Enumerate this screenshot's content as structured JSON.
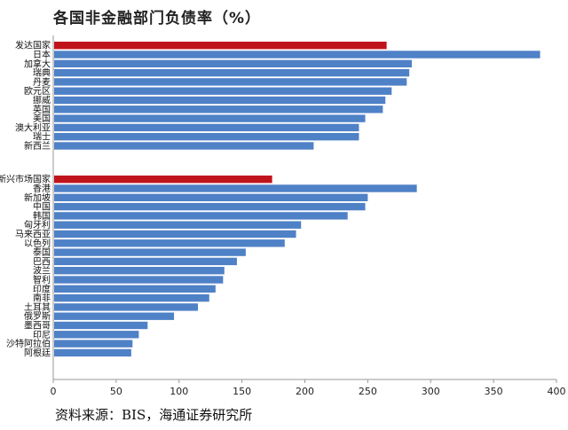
{
  "title": "各国非金融部门负债率（%）",
  "source": "资料来源：BIS，海通证券研究所",
  "colors": {
    "highlight": "#c0141c",
    "bar": "#4f81c7",
    "axis": "#999999"
  },
  "chart_data": {
    "type": "bar",
    "orientation": "horizontal",
    "title": "各国非金融部门负债率（%）",
    "xlim": [
      0,
      400
    ],
    "xticks": [
      0,
      50,
      100,
      150,
      200,
      250,
      300,
      350,
      400
    ],
    "groups": [
      {
        "categories": [
          "发达国家",
          "日本",
          "加拿大",
          "瑞典",
          "丹麦",
          "欧元区",
          "挪威",
          "英国",
          "美国",
          "澳大利亚",
          "瑞士",
          "新西兰"
        ],
        "values": [
          265,
          387,
          285,
          283,
          281,
          269,
          264,
          262,
          248,
          243,
          243,
          207
        ],
        "highlight": [
          true,
          false,
          false,
          false,
          false,
          false,
          false,
          false,
          false,
          false,
          false,
          false
        ]
      },
      {
        "categories": [
          "新兴市场国家",
          "香港",
          "新加坡",
          "中国",
          "韩国",
          "匈牙利",
          "马来西亚",
          "以色列",
          "泰国",
          "巴西",
          "波兰",
          "智利",
          "印度",
          "南非",
          "土耳其",
          "俄罗斯",
          "墨西哥",
          "印尼",
          "沙特阿拉伯",
          "阿根廷"
        ],
        "values": [
          174,
          289,
          250,
          248,
          234,
          197,
          193,
          184,
          153,
          146,
          136,
          135,
          129,
          124,
          115,
          96,
          75,
          68,
          63,
          62
        ],
        "highlight": [
          true,
          false,
          false,
          false,
          false,
          false,
          false,
          false,
          false,
          false,
          false,
          false,
          false,
          false,
          false,
          false,
          false,
          false,
          false,
          false
        ]
      }
    ]
  }
}
